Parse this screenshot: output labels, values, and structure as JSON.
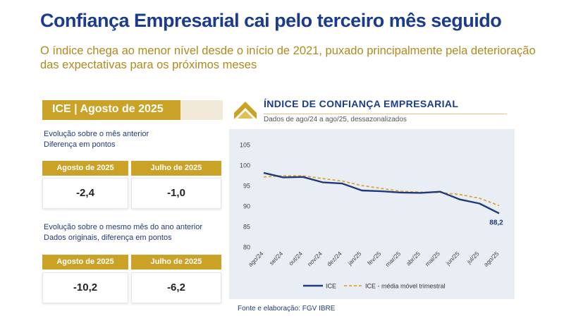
{
  "header": {
    "title": "Confiança Empresarial cai pelo terceiro mês seguido",
    "subtitle": "O índice chega ao menor nível desde o início de 2021, puxado principalmente pela deterioração das expectativas para os próximos meses"
  },
  "panel": {
    "tab_label": "ICE | Agosto de 2025",
    "section1": {
      "note_line1": "Evolução sobre o mês anterior",
      "note_line2": "Diferença em pontos",
      "col1_header": "Agosto de 2025",
      "col2_header": "Julho de 2025",
      "col1_value": "-2,4",
      "col2_value": "-1,0"
    },
    "section2": {
      "note_line1": "Evolução sobre o mesmo mês do ano anterior",
      "note_line2": "Dados originais, diferença em pontos",
      "col1_header": "Agosto de 2025",
      "col2_header": "Julho de 2025",
      "col1_value": "-10,2",
      "col2_value": "-6,2"
    },
    "colors": {
      "gold": "#c9a227",
      "navy": "#1f3a7a"
    }
  },
  "chart_data": {
    "type": "line",
    "title": "ÍNDICE DE CONFIANÇA EMPRESARIAL",
    "subtitle": "Dados de ago/24 a ago/25, dessazonalizados",
    "categories": [
      "ago/24",
      "set/24",
      "out/24",
      "nov/24",
      "dez/24",
      "jan/25",
      "fev/25",
      "mar/25",
      "abr/25",
      "mai/25",
      "jun/25",
      "jul/25",
      "ago/25"
    ],
    "series": [
      {
        "name": "ICE",
        "color": "#1f3a7a",
        "style": "solid",
        "values": [
          98.1,
          97.0,
          97.1,
          95.8,
          95.5,
          93.8,
          93.6,
          93.3,
          93.2,
          93.5,
          91.6,
          90.6,
          88.2
        ]
      },
      {
        "name": "ICE - média móvel trimestral",
        "color": "#e0a232",
        "style": "dashed",
        "values": [
          97.1,
          97.4,
          97.4,
          96.7,
          96.1,
          95.0,
          94.3,
          93.6,
          93.4,
          93.3,
          92.8,
          91.9,
          90.1
        ]
      }
    ],
    "ylim": [
      80,
      105
    ],
    "yticks": [
      80,
      85,
      90,
      95,
      100,
      105
    ],
    "grid": false,
    "legend": "bottom",
    "data_label": {
      "index": 12,
      "text": "88,2"
    }
  },
  "footer": {
    "source": "Fonte e elaboração: FGV IBRE"
  }
}
